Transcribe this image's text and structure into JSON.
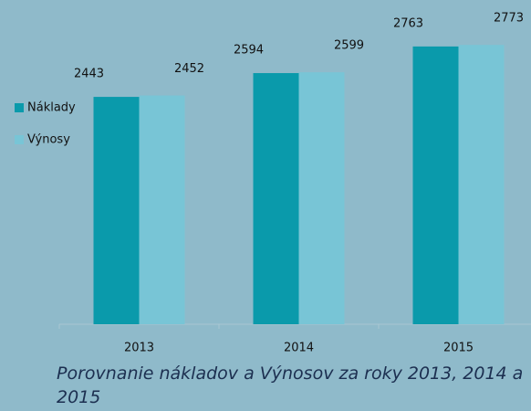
{
  "chart_data": {
    "type": "bar",
    "title": "Porovnanie nákladov a Výnosov za roky 2013, 2014 a 2015",
    "categories": [
      "2013",
      "2014",
      "2015"
    ],
    "series": [
      {
        "name": "Náklady",
        "color": "#0a9aab",
        "values": [
          2443,
          2594,
          2763
        ]
      },
      {
        "name": "Výnosy",
        "color": "#78c5d6",
        "values": [
          2452,
          2599,
          2773
        ]
      }
    ],
    "ylim": [
      1000,
      3000
    ],
    "legend": "left"
  }
}
